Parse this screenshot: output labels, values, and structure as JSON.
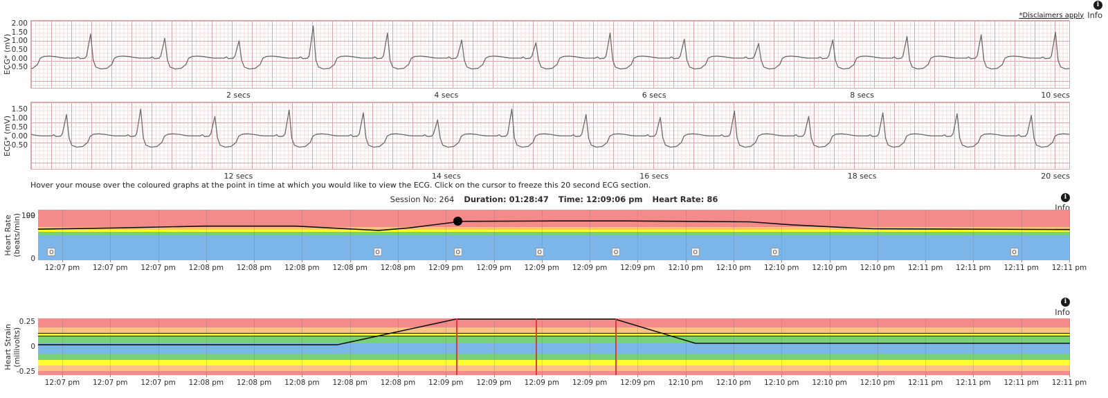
{
  "header": {
    "disclaimer_link": "*Disclaimers apply",
    "info_label": "Info",
    "info_glyph": "i"
  },
  "instruction": "Hover your mouse over the coloured graphs at the point in time at which you would like to view the ECG. Click on the cursor to freeze this 20 second ECG section.",
  "session": {
    "session_no": "Session No: 264",
    "duration": "Duration: 01:28:47",
    "time": "Time: 12:09:06 pm",
    "heart_rate": "Heart Rate: 86"
  },
  "colors": {
    "band_red": "#f48b8b",
    "band_orange": "#fac285",
    "band_yellow": "#fdfd2e",
    "band_green": "#77d277",
    "band_blue": "#7cb5e8",
    "ecg_grid_minor": "#f3dddd",
    "ecg_grid_major": "#d9a7ab",
    "ecg_trace": "#6a6a6a",
    "series_line": "#111111",
    "event_line_red": "#e03b3b",
    "marker_face": "#ededed",
    "marker_border": "#999999"
  },
  "chart_data": [
    {
      "id": "ecg_top",
      "type": "line",
      "ylabel": "ECG* (mV)",
      "yticks": [
        "2.00",
        "1.50",
        "1.00",
        "0.50",
        "0.00",
        "-0.50"
      ],
      "xticks": [
        {
          "label": "2 secs",
          "t": 2
        },
        {
          "label": "4 secs",
          "t": 4
        },
        {
          "label": "6 secs",
          "t": 6
        },
        {
          "label": "8 secs",
          "t": 8
        },
        {
          "label": "10 secs",
          "t": 10
        }
      ],
      "x_range_s": [
        0,
        10
      ],
      "beat_period_s": 0.714,
      "first_beat_start_s": -0.342,
      "r_peak_amplitudes_mv": [
        1.3,
        1.45,
        1.2,
        1.05,
        1.9,
        1.5,
        1.1,
        0.95,
        1.5,
        1.15,
        0.9,
        1.1,
        1.3,
        1.4,
        1.55,
        1.5
      ],
      "beat_shape": [
        [
          0,
          0.06
        ],
        [
          0.08,
          0.06
        ],
        [
          0.11,
          0.13
        ],
        [
          0.14,
          0.03
        ],
        [
          0.2,
          0.05
        ],
        [
          0.225,
          0.18
        ],
        [
          0.28,
          "R"
        ],
        [
          0.315,
          -0.05
        ],
        [
          0.35,
          -0.45
        ],
        [
          0.42,
          -0.56
        ],
        [
          0.5,
          -0.52
        ],
        [
          0.565,
          -0.3
        ],
        [
          0.6,
          0.05
        ],
        [
          0.65,
          0.16
        ],
        [
          0.72,
          0.18
        ],
        [
          0.8,
          0.15
        ],
        [
          0.88,
          0.09
        ],
        [
          0.94,
          0.06
        ]
      ]
    },
    {
      "id": "ecg_bottom",
      "type": "line",
      "ylabel": "ECG* (mV)",
      "yticks": [
        "1.50",
        "1.00",
        "0.50",
        "0.00",
        "-0.50"
      ],
      "xticks": [
        {
          "label": "12 secs",
          "t": 2
        },
        {
          "label": "14 secs",
          "t": 4
        },
        {
          "label": "16 secs",
          "t": 6
        },
        {
          "label": "18 secs",
          "t": 8
        },
        {
          "label": "20 secs",
          "t": 10
        }
      ],
      "x_range_s": [
        10,
        20
      ],
      "beat_period_s": 0.714,
      "first_beat_start_s": -0.574,
      "r_peak_amplitudes_mv": [
        1.1,
        1.25,
        1.55,
        1.15,
        1.5,
        1.35,
        0.95,
        1.55,
        1.25,
        1.1,
        1.45,
        1.15,
        1.35,
        1.3,
        1.2,
        1.2
      ],
      "beat_shape": [
        [
          0,
          0.06
        ],
        [
          0.08,
          0.06
        ],
        [
          0.11,
          0.13
        ],
        [
          0.14,
          0.03
        ],
        [
          0.2,
          0.05
        ],
        [
          0.225,
          0.18
        ],
        [
          0.28,
          "R"
        ],
        [
          0.315,
          -0.05
        ],
        [
          0.35,
          -0.45
        ],
        [
          0.42,
          -0.56
        ],
        [
          0.5,
          -0.52
        ],
        [
          0.565,
          -0.3
        ],
        [
          0.6,
          0.05
        ],
        [
          0.65,
          0.16
        ],
        [
          0.72,
          0.18
        ],
        [
          0.8,
          0.15
        ],
        [
          0.88,
          0.09
        ],
        [
          0.94,
          0.06
        ]
      ]
    },
    {
      "id": "heart_rate",
      "type": "area",
      "ylabel_lines": [
        "Heart Rate",
        "(beats/min)"
      ],
      "yticks": [
        {
          "label": "100",
          "v": 100
        },
        {
          "label": "99",
          "v": 99
        },
        {
          "label": "0",
          "v": 0
        }
      ],
      "y_range": [
        -3,
        114
      ],
      "xticks": [
        "12:07 pm",
        "12:07 pm",
        "12:07 pm",
        "12:08 pm",
        "12:08 pm",
        "12:08 pm",
        "12:08 pm",
        "12:08 pm",
        "12:09 pm",
        "12:09 pm",
        "12:09 pm",
        "12:09 pm",
        "12:09 pm",
        "12:10 pm",
        "12:10 pm",
        "12:10 pm",
        "12:10 pm",
        "12:10 pm",
        "12:11 pm",
        "12:11 pm",
        "12:11 pm",
        "12:11 pm"
      ],
      "bands": [
        {
          "c": "band_red",
          "lo": 74,
          "hi": 114
        },
        {
          "c": "band_orange",
          "lo": 68,
          "hi": 74
        },
        {
          "c": "band_yellow",
          "lo": 62,
          "hi": 68
        },
        {
          "c": "band_green",
          "lo": 55,
          "hi": 62
        },
        {
          "c": "band_blue",
          "lo": -3,
          "hi": 55
        }
      ],
      "series": [
        [
          0,
          69
        ],
        [
          0.08,
          72
        ],
        [
          0.16,
          76
        ],
        [
          0.25,
          76
        ],
        [
          0.29,
          71
        ],
        [
          0.33,
          66
        ],
        [
          0.36,
          72
        ],
        [
          0.41,
          87
        ],
        [
          0.5,
          88
        ],
        [
          0.57,
          88
        ],
        [
          0.63,
          87
        ],
        [
          0.69,
          86
        ],
        [
          0.73,
          79
        ],
        [
          0.78,
          73
        ],
        [
          0.81,
          70
        ],
        [
          0.9,
          69
        ],
        [
          1,
          68
        ]
      ],
      "cursor_dot": {
        "x": 0.407,
        "v": 87
      },
      "markers": {
        "glyph": "O",
        "x": [
          0.013,
          0.329,
          0.407,
          0.486,
          0.56,
          0.637,
          0.714,
          0.946
        ]
      }
    },
    {
      "id": "heart_strain",
      "type": "area",
      "ylabel_lines": [
        "Heart Strain",
        "(millivolts)"
      ],
      "yticks": [
        {
          "label": "0.25",
          "v": 0.25
        },
        {
          "label": "0",
          "v": 0
        },
        {
          "label": "-0.25",
          "v": -0.25
        }
      ],
      "y_range": [
        -0.285,
        0.285
      ],
      "xticks": [
        "12:07 pm",
        "12:07 pm",
        "12:07 pm",
        "12:08 pm",
        "12:08 pm",
        "12:08 pm",
        "12:08 pm",
        "12:08 pm",
        "12:09 pm",
        "12:09 pm",
        "12:09 pm",
        "12:09 pm",
        "12:09 pm",
        "12:10 pm",
        "12:10 pm",
        "12:10 pm",
        "12:10 pm",
        "12:10 pm",
        "12:11 pm",
        "12:11 pm",
        "12:11 pm",
        "12:11 pm"
      ],
      "bands": [
        {
          "c": "band_red",
          "lo": 0.195,
          "hi": 0.285
        },
        {
          "c": "band_orange",
          "lo": 0.139,
          "hi": 0.195
        },
        {
          "c": "band_yellow",
          "lo": 0.104,
          "hi": 0.139,
          "edge": true
        },
        {
          "c": "band_green",
          "lo": 0.035,
          "hi": 0.104
        },
        {
          "c": "band_blue",
          "lo": -0.07,
          "hi": 0.035
        },
        {
          "c": "band_green",
          "lo": -0.132,
          "hi": -0.07
        },
        {
          "c": "band_yellow",
          "lo": -0.188,
          "hi": -0.132
        },
        {
          "c": "band_orange",
          "lo": -0.243,
          "hi": -0.188
        },
        {
          "c": "band_red",
          "lo": -0.285,
          "hi": -0.243
        }
      ],
      "series": [
        [
          0,
          0.02
        ],
        [
          0.29,
          0.02
        ],
        [
          0.405,
          0.278
        ],
        [
          0.559,
          0.278
        ],
        [
          0.637,
          0.035
        ],
        [
          1,
          0.035
        ]
      ],
      "event_lines": {
        "x": [
          0.405,
          0.482,
          0.559
        ]
      }
    }
  ]
}
